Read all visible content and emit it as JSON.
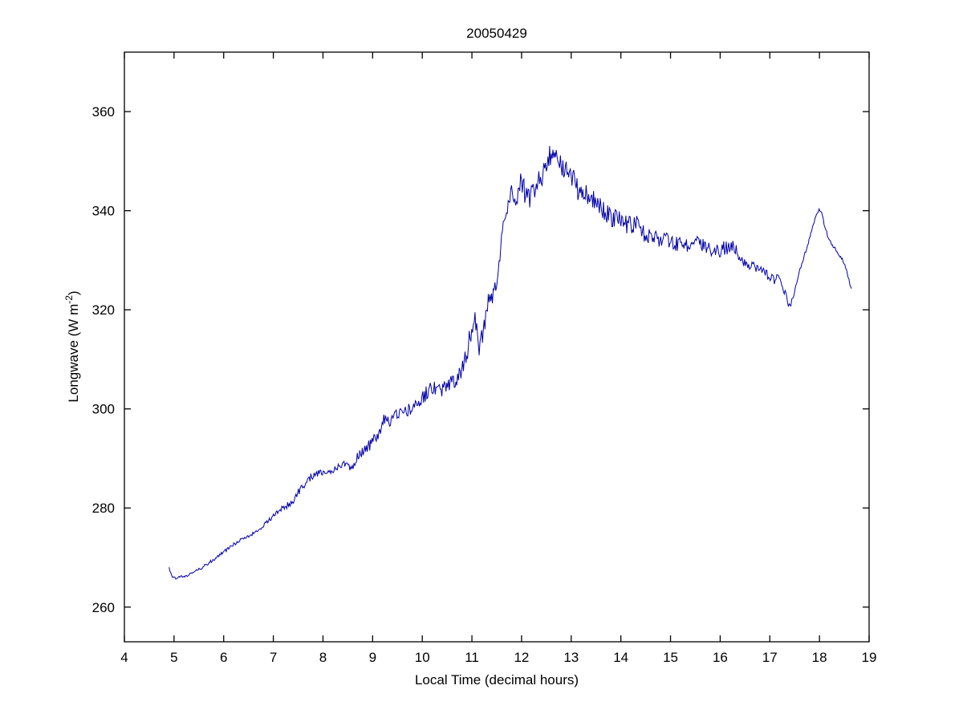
{
  "chart_data": {
    "type": "line",
    "title": "20050429",
    "xlabel": "Local Time (decimal hours)",
    "ylabel": {
      "prefix": "Longwave (W m",
      "sup": "-2",
      "suffix": ")"
    },
    "xlim": [
      4,
      19
    ],
    "ylim": [
      253,
      372
    ],
    "xticks": [
      4,
      5,
      6,
      7,
      8,
      9,
      10,
      11,
      12,
      13,
      14,
      15,
      16,
      17,
      18,
      19
    ],
    "yticks": [
      260,
      280,
      300,
      320,
      340,
      360
    ],
    "grid": false,
    "legend": "none",
    "line_color": "#0000AA",
    "background_color": "#ffffff",
    "axis_color": "#000000",
    "x_start": 4.9,
    "x_end": 18.65,
    "sample_step_hours": 0.0167,
    "anchors": [
      [
        4.9,
        268.0
      ],
      [
        4.95,
        266.3
      ],
      [
        5.05,
        265.8
      ],
      [
        5.2,
        266.2
      ],
      [
        5.4,
        267.0
      ],
      [
        5.6,
        268.2
      ],
      [
        5.8,
        269.6
      ],
      [
        6.0,
        271.2
      ],
      [
        6.2,
        272.6
      ],
      [
        6.4,
        273.8
      ],
      [
        6.6,
        275.0
      ],
      [
        6.8,
        276.4
      ],
      [
        7.0,
        278.4
      ],
      [
        7.2,
        280.2
      ],
      [
        7.3,
        280.6
      ],
      [
        7.4,
        281.4
      ],
      [
        7.55,
        284.0
      ],
      [
        7.7,
        285.8
      ],
      [
        7.85,
        287.0
      ],
      [
        8.0,
        287.4
      ],
      [
        8.15,
        287.6
      ],
      [
        8.3,
        288.2
      ],
      [
        8.45,
        289.0
      ],
      [
        8.6,
        288.0
      ],
      [
        8.7,
        290.6
      ],
      [
        8.85,
        292.0
      ],
      [
        9.0,
        293.2
      ],
      [
        9.15,
        295.5
      ],
      [
        9.25,
        298.5
      ],
      [
        9.35,
        297.0
      ],
      [
        9.5,
        299.5
      ],
      [
        9.65,
        299.0
      ],
      [
        9.8,
        300.5
      ],
      [
        9.95,
        301.5
      ],
      [
        10.1,
        303.5
      ],
      [
        10.25,
        304.5
      ],
      [
        10.4,
        304.0
      ],
      [
        10.55,
        305.5
      ],
      [
        10.7,
        306.0
      ],
      [
        10.8,
        308.0
      ],
      [
        10.9,
        311.5
      ],
      [
        11.0,
        316.5
      ],
      [
        11.05,
        318.5
      ],
      [
        11.15,
        312.5
      ],
      [
        11.25,
        317.0
      ],
      [
        11.35,
        322.5
      ],
      [
        11.45,
        323.5
      ],
      [
        11.52,
        326.0
      ],
      [
        11.58,
        333.0
      ],
      [
        11.62,
        338.5
      ],
      [
        11.68,
        337.5
      ],
      [
        11.75,
        344.5
      ],
      [
        11.82,
        342.0
      ],
      [
        11.88,
        340.0
      ],
      [
        11.95,
        345.5
      ],
      [
        12.05,
        344.0
      ],
      [
        12.15,
        342.5
      ],
      [
        12.25,
        345.0
      ],
      [
        12.35,
        346.0
      ],
      [
        12.45,
        347.5
      ],
      [
        12.55,
        350.5
      ],
      [
        12.62,
        352.5
      ],
      [
        12.7,
        350.5
      ],
      [
        12.8,
        349.5
      ],
      [
        12.9,
        348.5
      ],
      [
        13.0,
        347.5
      ],
      [
        13.1,
        344.5
      ],
      [
        13.25,
        344.0
      ],
      [
        13.4,
        342.5
      ],
      [
        13.55,
        341.0
      ],
      [
        13.7,
        339.5
      ],
      [
        13.85,
        338.5
      ],
      [
        14.0,
        338.0
      ],
      [
        14.15,
        337.0
      ],
      [
        14.3,
        337.5
      ],
      [
        14.45,
        335.5
      ],
      [
        14.6,
        335.0
      ],
      [
        14.75,
        334.5
      ],
      [
        14.9,
        334.0
      ],
      [
        15.05,
        333.5
      ],
      [
        15.2,
        333.0
      ],
      [
        15.35,
        333.0
      ],
      [
        15.5,
        333.5
      ],
      [
        15.65,
        333.0
      ],
      [
        15.8,
        332.5
      ],
      [
        15.95,
        332.0
      ],
      [
        16.1,
        332.5
      ],
      [
        16.25,
        333.0
      ],
      [
        16.4,
        330.5
      ],
      [
        16.55,
        328.5
      ],
      [
        16.7,
        328.5
      ],
      [
        16.85,
        328.0
      ],
      [
        17.0,
        327.0
      ],
      [
        17.1,
        326.0
      ],
      [
        17.2,
        326.5
      ],
      [
        17.3,
        323.5
      ],
      [
        17.4,
        320.5
      ],
      [
        17.5,
        323.5
      ],
      [
        17.6,
        328.0
      ],
      [
        17.7,
        331.0
      ],
      [
        17.8,
        334.5
      ],
      [
        17.9,
        338.0
      ],
      [
        17.97,
        340.0
      ],
      [
        18.03,
        340.2
      ],
      [
        18.1,
        337.0
      ],
      [
        18.2,
        334.0
      ],
      [
        18.3,
        332.5
      ],
      [
        18.4,
        331.0
      ],
      [
        18.5,
        329.5
      ],
      [
        18.58,
        326.5
      ],
      [
        18.65,
        324.0
      ]
    ],
    "noise_amplitude": [
      [
        4.9,
        0.3
      ],
      [
        6.0,
        0.35
      ],
      [
        7.0,
        0.5
      ],
      [
        7.6,
        0.8
      ],
      [
        8.4,
        0.7
      ],
      [
        9.0,
        1.2
      ],
      [
        9.6,
        1.3
      ],
      [
        10.2,
        1.6
      ],
      [
        10.8,
        1.8
      ],
      [
        11.1,
        2.2
      ],
      [
        11.5,
        1.8
      ],
      [
        11.7,
        2.6
      ],
      [
        12.5,
        2.4
      ],
      [
        13.2,
        2.2
      ],
      [
        14.0,
        1.9
      ],
      [
        15.0,
        1.6
      ],
      [
        16.0,
        1.5
      ],
      [
        16.8,
        1.3
      ],
      [
        17.2,
        1.0
      ],
      [
        17.45,
        0.5
      ],
      [
        17.8,
        0.3
      ],
      [
        18.1,
        0.4
      ],
      [
        18.65,
        0.3
      ]
    ]
  }
}
